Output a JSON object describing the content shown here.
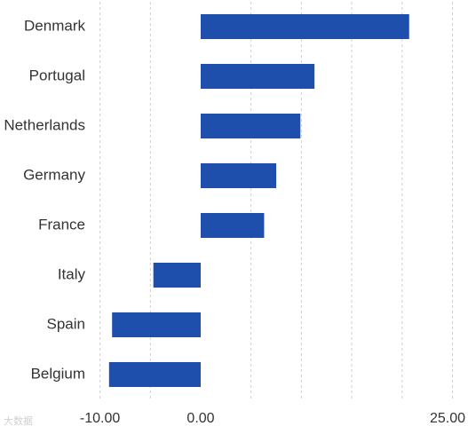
{
  "chart_data": {
    "type": "bar",
    "orientation": "horizontal",
    "categories": [
      "Denmark",
      "Portugal",
      "Netherlands",
      "Germany",
      "France",
      "Italy",
      "Spain",
      "Belgium"
    ],
    "values": [
      20.7,
      11.3,
      9.9,
      7.5,
      6.3,
      -4.7,
      -8.8,
      -9.1
    ],
    "xlim": [
      -10,
      25
    ],
    "xticks": [
      -10,
      0,
      25
    ],
    "xtick_labels": [
      "-10.00",
      "0.00",
      "25.00"
    ],
    "grid": true,
    "bar_color": "#1f4fad"
  },
  "watermark": "大数据"
}
